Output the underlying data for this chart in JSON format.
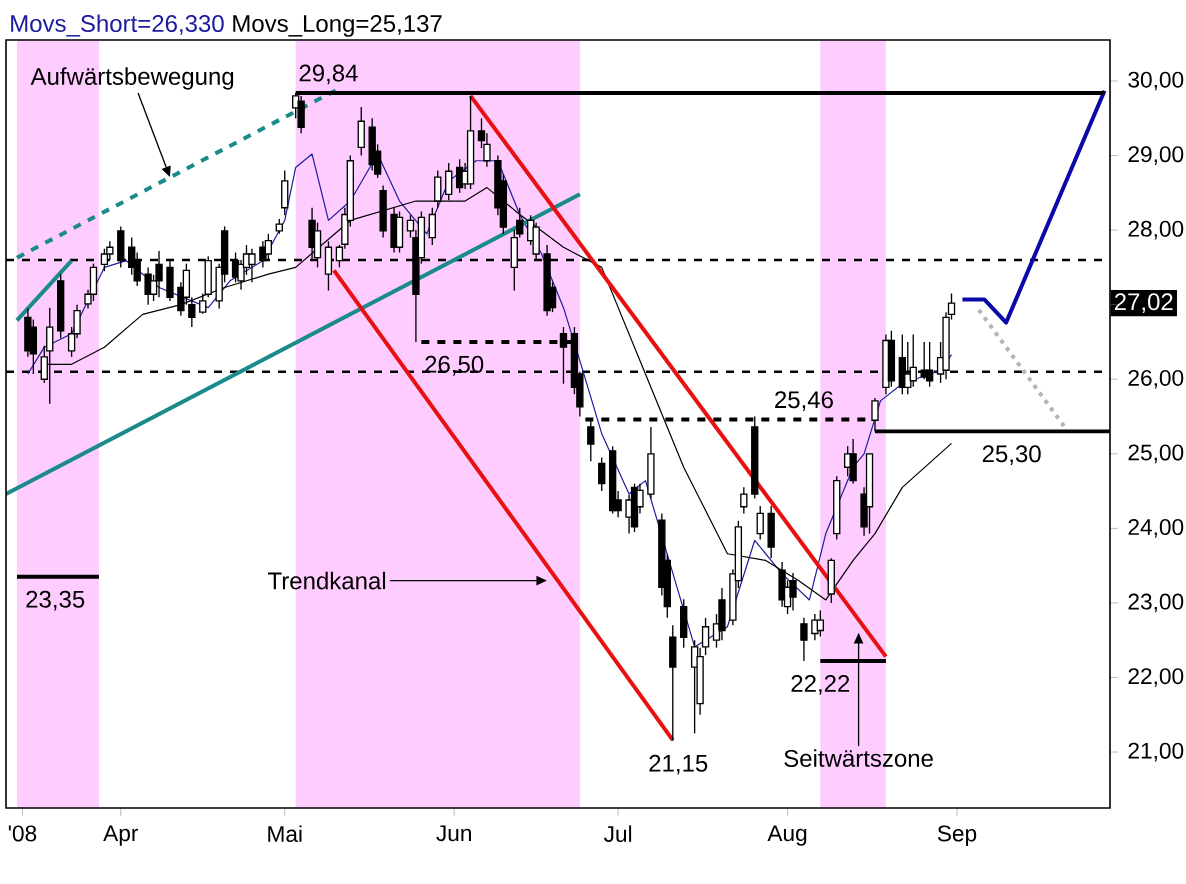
{
  "chart_data": {
    "type": "candlestick",
    "x": [
      "2008-03-15",
      "2008-03-16",
      "2008-03-18",
      "2008-03-19",
      "2008-03-21",
      "2008-03-23",
      "2008-03-24",
      "2008-03-26",
      "2008-03-27",
      "2008-03-29",
      "2008-03-30",
      "2008-04-01",
      "2008-04-03",
      "2008-04-04",
      "2008-04-06",
      "2008-04-07",
      "2008-04-08",
      "2008-04-10",
      "2008-04-12",
      "2008-04-13",
      "2008-04-14",
      "2008-04-16",
      "2008-04-17",
      "2008-04-19",
      "2008-04-20",
      "2008-04-22",
      "2008-04-23",
      "2008-04-24",
      "2008-04-25",
      "2008-04-27",
      "2008-04-28",
      "2008-04-30",
      "2008-05-01",
      "2008-05-03",
      "2008-05-04",
      "2008-05-06",
      "2008-05-07",
      "2008-05-09",
      "2008-05-11",
      "2008-05-12",
      "2008-05-13",
      "2008-05-15",
      "2008-05-17",
      "2008-05-18",
      "2008-05-19",
      "2008-05-21",
      "2008-05-22",
      "2008-05-24",
      "2008-05-25",
      "2008-05-26",
      "2008-05-28",
      "2008-05-29",
      "2008-05-31",
      "2008-06-02",
      "2008-06-03",
      "2008-06-04",
      "2008-06-06",
      "2008-06-07",
      "2008-06-09",
      "2008-06-10",
      "2008-06-12",
      "2008-06-13",
      "2008-06-15",
      "2008-06-16",
      "2008-06-18",
      "2008-06-19",
      "2008-06-21",
      "2008-06-23",
      "2008-06-24",
      "2008-06-26",
      "2008-06-28",
      "2008-06-30",
      "2008-07-01",
      "2008-07-03",
      "2008-07-04",
      "2008-07-05",
      "2008-07-07",
      "2008-07-09",
      "2008-07-10",
      "2008-07-11",
      "2008-07-13",
      "2008-07-15",
      "2008-07-16",
      "2008-07-17",
      "2008-07-19",
      "2008-07-20",
      "2008-07-22",
      "2008-07-23",
      "2008-07-24",
      "2008-07-26",
      "2008-07-27",
      "2008-07-29",
      "2008-07-31",
      "2008-08-01",
      "2008-08-02",
      "2008-08-04",
      "2008-08-06",
      "2008-08-07",
      "2008-08-09",
      "2008-08-10",
      "2008-08-12",
      "2008-08-13",
      "2008-08-15",
      "2008-08-16",
      "2008-08-17",
      "2008-08-19",
      "2008-08-20",
      "2008-08-22",
      "2008-08-23",
      "2008-08-24",
      "2008-08-26",
      "2008-08-27",
      "2008-08-29",
      "2008-08-30",
      "2008-08-31"
    ],
    "ohlc": [
      [
        26.83,
        26.95,
        26.3,
        26.38
      ],
      [
        26.7,
        26.8,
        26.07,
        26.34
      ],
      [
        26.0,
        26.45,
        25.95,
        26.3
      ],
      [
        26.38,
        26.96,
        25.67,
        26.7
      ],
      [
        27.32,
        27.41,
        26.55,
        26.65
      ],
      [
        26.38,
        26.7,
        26.3,
        26.61
      ],
      [
        26.61,
        27.0,
        26.55,
        26.92
      ],
      [
        27.01,
        27.2,
        26.95,
        27.14
      ],
      [
        27.14,
        27.55,
        27.05,
        27.5
      ],
      [
        27.54,
        27.75,
        27.45,
        27.68
      ],
      [
        27.68,
        27.85,
        27.6,
        27.77
      ],
      [
        27.99,
        28.05,
        27.5,
        27.59
      ],
      [
        27.77,
        27.9,
        27.4,
        27.5
      ],
      [
        27.59,
        27.7,
        27.25,
        27.32
      ],
      [
        27.41,
        27.5,
        27.0,
        27.14
      ],
      [
        27.14,
        27.4,
        27.05,
        27.32
      ],
      [
        27.54,
        27.72,
        27.1,
        27.32
      ],
      [
        27.5,
        27.6,
        27.05,
        27.1
      ],
      [
        27.23,
        27.3,
        26.85,
        26.92
      ],
      [
        27.1,
        27.55,
        27.0,
        27.46
      ],
      [
        27.0,
        27.1,
        26.7,
        26.83
      ],
      [
        26.9,
        27.15,
        26.88,
        27.05
      ],
      [
        27.14,
        27.65,
        27.1,
        27.59
      ],
      [
        27.05,
        27.55,
        26.95,
        27.5
      ],
      [
        27.99,
        28.05,
        27.3,
        27.41
      ],
      [
        27.59,
        27.7,
        27.3,
        27.37
      ],
      [
        27.32,
        27.6,
        27.2,
        27.54
      ],
      [
        27.5,
        27.8,
        27.4,
        27.68
      ],
      [
        27.54,
        27.75,
        27.3,
        27.68
      ],
      [
        27.77,
        27.85,
        27.5,
        27.59
      ],
      [
        27.68,
        27.95,
        27.6,
        27.86
      ],
      [
        27.99,
        28.15,
        27.95,
        28.08
      ],
      [
        28.3,
        28.8,
        28.2,
        28.66
      ],
      [
        29.64,
        29.84,
        29.5,
        29.8
      ],
      [
        29.73,
        29.8,
        29.3,
        29.38
      ],
      [
        28.13,
        28.3,
        27.6,
        27.77
      ],
      [
        27.63,
        28.1,
        27.5,
        27.99
      ],
      [
        27.41,
        27.85,
        27.19,
        27.77
      ],
      [
        27.59,
        27.8,
        27.5,
        27.77
      ],
      [
        27.81,
        28.3,
        27.75,
        28.21
      ],
      [
        28.13,
        29.0,
        28.05,
        28.93
      ],
      [
        29.11,
        29.65,
        29.0,
        29.46
      ],
      [
        29.38,
        29.5,
        28.8,
        28.88
      ],
      [
        29.06,
        29.15,
        28.7,
        28.75
      ],
      [
        28.53,
        28.6,
        27.9,
        27.99
      ],
      [
        28.21,
        28.3,
        27.7,
        27.77
      ],
      [
        27.77,
        28.25,
        27.7,
        28.17
      ],
      [
        27.99,
        28.2,
        27.9,
        28.13
      ],
      [
        27.9,
        28.0,
        26.5,
        27.14
      ],
      [
        27.63,
        28.25,
        27.55,
        28.17
      ],
      [
        27.9,
        28.3,
        27.8,
        28.21
      ],
      [
        28.39,
        28.8,
        28.3,
        28.71
      ],
      [
        28.48,
        28.9,
        28.4,
        28.79
      ],
      [
        28.84,
        28.95,
        28.5,
        28.57
      ],
      [
        28.62,
        28.9,
        28.55,
        28.79
      ],
      [
        28.62,
        29.8,
        28.55,
        29.33
      ],
      [
        29.33,
        29.5,
        29.1,
        29.2
      ],
      [
        28.93,
        29.3,
        28.85,
        29.15
      ],
      [
        28.93,
        29.0,
        28.2,
        28.3
      ],
      [
        28.66,
        28.75,
        27.95,
        28.04
      ],
      [
        27.5,
        28.0,
        27.19,
        27.9
      ],
      [
        28.13,
        28.3,
        27.9,
        27.95
      ],
      [
        27.86,
        28.2,
        27.8,
        28.13
      ],
      [
        27.68,
        28.1,
        27.6,
        28.04
      ],
      [
        27.68,
        27.8,
        26.85,
        26.92
      ],
      [
        27.23,
        27.3,
        26.9,
        26.96
      ],
      [
        26.61,
        26.7,
        25.94,
        26.43
      ],
      [
        26.61,
        26.7,
        25.8,
        25.89
      ],
      [
        26.07,
        26.1,
        25.5,
        25.63
      ],
      [
        25.36,
        25.45,
        24.9,
        25.13
      ],
      [
        24.87,
        24.95,
        24.5,
        24.6
      ],
      [
        25.04,
        25.1,
        24.2,
        24.24
      ],
      [
        24.38,
        24.5,
        24.15,
        24.24
      ],
      [
        24.15,
        24.45,
        23.93,
        24.38
      ],
      [
        24.55,
        24.6,
        23.95,
        24.02
      ],
      [
        24.29,
        24.6,
        24.2,
        24.51
      ],
      [
        24.46,
        25.36,
        24.4,
        25.0
      ],
      [
        24.11,
        24.2,
        23.1,
        23.21
      ],
      [
        23.57,
        23.65,
        22.8,
        22.95
      ],
      [
        22.54,
        22.7,
        21.15,
        22.14
      ],
      [
        22.95,
        23.05,
        22.4,
        22.54
      ],
      [
        22.14,
        22.5,
        21.25,
        22.41
      ],
      [
        21.65,
        22.4,
        21.5,
        22.28
      ],
      [
        22.41,
        22.8,
        22.3,
        22.68
      ],
      [
        22.5,
        22.85,
        22.4,
        22.72
      ],
      [
        23.04,
        23.2,
        22.5,
        22.63
      ],
      [
        22.77,
        23.45,
        22.7,
        23.39
      ],
      [
        23.3,
        24.1,
        23.2,
        24.02
      ],
      [
        24.29,
        24.55,
        24.2,
        24.46
      ],
      [
        25.36,
        25.5,
        24.4,
        24.46
      ],
      [
        23.93,
        24.3,
        23.85,
        24.2
      ],
      [
        24.2,
        24.3,
        23.6,
        23.75
      ],
      [
        23.44,
        23.55,
        22.95,
        23.04
      ],
      [
        22.95,
        23.3,
        22.85,
        23.21
      ],
      [
        23.3,
        23.4,
        22.9,
        23.08
      ],
      [
        22.72,
        22.8,
        22.22,
        22.5
      ],
      [
        22.59,
        22.85,
        22.5,
        22.77
      ],
      [
        22.63,
        22.9,
        22.55,
        22.77
      ],
      [
        23.12,
        23.6,
        23.0,
        23.57
      ],
      [
        23.93,
        24.7,
        23.85,
        24.64
      ],
      [
        24.82,
        25.1,
        24.7,
        25.0
      ],
      [
        25.0,
        25.2,
        24.6,
        24.64
      ],
      [
        24.46,
        24.55,
        23.9,
        24.02
      ],
      [
        24.29,
        25.0,
        23.93,
        25.0
      ],
      [
        25.45,
        25.75,
        25.3,
        25.71
      ],
      [
        25.89,
        26.6,
        25.8,
        26.52
      ],
      [
        26.52,
        26.65,
        25.9,
        25.98
      ],
      [
        26.29,
        26.6,
        25.8,
        25.89
      ],
      [
        25.89,
        26.5,
        25.8,
        26.07
      ],
      [
        25.98,
        26.6,
        25.9,
        26.16
      ],
      [
        26.12,
        26.5,
        26.0,
        26.03
      ],
      [
        26.12,
        26.5,
        25.9,
        25.98
      ],
      [
        26.07,
        26.5,
        25.95,
        26.29
      ],
      [
        26.12,
        26.9,
        26.0,
        26.83
      ],
      [
        26.87,
        27.15,
        26.8,
        27.02
      ]
    ],
    "series": [
      {
        "name": "Movs_Short=26,330",
        "type": "line",
        "color": "#1c1ca0",
        "x": [
          "2008-03-15",
          "2008-03-18",
          "2008-03-23",
          "2008-03-29",
          "2008-04-02",
          "2008-04-08",
          "2008-04-17",
          "2008-04-21",
          "2008-04-27",
          "2008-05-01",
          "2008-05-03",
          "2008-05-06",
          "2008-05-09",
          "2008-05-13",
          "2008-05-18",
          "2008-05-22",
          "2008-05-27",
          "2008-05-31",
          "2008-06-05",
          "2008-06-09",
          "2008-06-13",
          "2008-06-17",
          "2008-06-21",
          "2008-06-24",
          "2008-06-28",
          "2008-07-03",
          "2008-07-06",
          "2008-07-15",
          "2008-07-21",
          "2008-07-26",
          "2008-07-31",
          "2008-08-05",
          "2008-08-08",
          "2008-08-13",
          "2008-08-15",
          "2008-08-18",
          "2008-08-22",
          "2008-08-29",
          "2008-08-31"
        ],
        "values": [
          26.07,
          26.43,
          26.61,
          27.5,
          27.59,
          27.23,
          26.96,
          27.32,
          27.59,
          28.13,
          28.84,
          29.02,
          28.13,
          28.39,
          29.02,
          28.39,
          27.95,
          28.66,
          28.93,
          28.93,
          28.21,
          27.68,
          26.96,
          26.25,
          25.27,
          24.46,
          24.64,
          22.41,
          22.68,
          23.84,
          23.39,
          23.04,
          23.93,
          24.82,
          25.0,
          25.71,
          25.94,
          26.12,
          26.33
        ]
      },
      {
        "name": "Movs_Long=25,137",
        "type": "line",
        "color": "#000000",
        "x": [
          "2008-03-18",
          "2008-03-23",
          "2008-03-29",
          "2008-04-05",
          "2008-04-12",
          "2008-04-20",
          "2008-04-28",
          "2008-05-03",
          "2008-05-13",
          "2008-05-25",
          "2008-06-03",
          "2008-06-07",
          "2008-06-13",
          "2008-06-21",
          "2008-06-28",
          "2008-07-06",
          "2008-07-13",
          "2008-07-21",
          "2008-07-28",
          "2008-08-03",
          "2008-08-08",
          "2008-08-13",
          "2008-08-17",
          "2008-08-22",
          "2008-08-31"
        ],
        "values": [
          26.2,
          26.2,
          26.43,
          26.87,
          27.0,
          27.23,
          27.41,
          27.5,
          28.13,
          28.39,
          28.39,
          28.57,
          28.21,
          27.77,
          27.5,
          26.07,
          24.82,
          23.66,
          23.57,
          23.3,
          23.04,
          23.57,
          23.93,
          24.55,
          25.14
        ]
      },
      {
        "type": "line",
        "color": "#1a8a8a",
        "line_style": "dashed",
        "x": [
          "2008-03-13",
          "2008-05-11"
        ],
        "values": [
          27.63,
          29.9
        ]
      },
      {
        "type": "line",
        "color": "#1a8a8a",
        "x": [
          "2008-03-13",
          "2008-03-23"
        ],
        "values": [
          26.79,
          27.59
        ]
      },
      {
        "type": "line",
        "color": "#1a8a8a",
        "x": [
          "2008-03-11",
          "2008-06-24"
        ],
        "values": [
          24.46,
          28.48
        ]
      },
      {
        "type": "line",
        "color": "#e81010",
        "x": [
          "2008-06-04",
          "2008-08-19"
        ],
        "values": [
          29.8,
          22.28
        ]
      },
      {
        "type": "line",
        "color": "#e81010",
        "x": [
          "2008-05-10",
          "2008-07-11"
        ],
        "values": [
          27.46,
          21.16
        ]
      },
      {
        "type": "line",
        "color": "#0a0aa8",
        "x": [
          "2008-09-02",
          "2008-09-06",
          "2008-09-10",
          "2008-09-28"
        ],
        "values": [
          27.07,
          27.07,
          26.76,
          29.87
        ]
      },
      {
        "type": "line",
        "color": "#b4b4b4",
        "line_style": "dotted",
        "x": [
          "2008-09-05",
          "2008-09-21"
        ],
        "values": [
          26.93,
          25.33
        ]
      },
      {
        "type": "line",
        "color": "#000000",
        "x": [
          "2008-05-03",
          "2008-09-28"
        ],
        "values": [
          29.84,
          29.84
        ]
      },
      {
        "type": "line",
        "color": "#000000",
        "line_style": "dashed",
        "x": [
          "2008-05-26",
          "2008-06-23"
        ],
        "values": [
          26.5,
          26.5
        ]
      },
      {
        "type": "line",
        "color": "#000000",
        "line_style": "dashed",
        "x": [
          "2008-06-25",
          "2008-08-16"
        ],
        "values": [
          25.46,
          25.46
        ]
      },
      {
        "type": "line",
        "color": "#000000",
        "x": [
          "2008-08-17",
          "2008-09-29"
        ],
        "values": [
          25.3,
          25.3
        ]
      },
      {
        "type": "line",
        "color": "#000000",
        "x": [
          "2008-03-13",
          "2008-03-28"
        ],
        "values": [
          23.35,
          23.35
        ]
      },
      {
        "type": "line",
        "color": "#000000",
        "x": [
          "2008-08-07",
          "2008-08-19"
        ],
        "values": [
          22.22,
          22.22
        ]
      }
    ],
    "ref_lines": [
      {
        "axis": "y",
        "value": 27.6,
        "line_style": "dashed",
        "color": "#000000"
      },
      {
        "axis": "y",
        "value": 26.1,
        "line_style": "dashed",
        "color": "#000000"
      }
    ],
    "bands": [
      {
        "axis": "x",
        "from": "2008-03-13",
        "to": "2008-03-28",
        "color": "#ffccff"
      },
      {
        "axis": "x",
        "from": "2008-05-03",
        "to": "2008-06-24",
        "color": "#ffccff"
      },
      {
        "axis": "x",
        "from": "2008-08-07",
        "to": "2008-08-19",
        "color": "#ffccff"
      }
    ],
    "annotations": [
      {
        "text": "Aufwärtsbewegung",
        "x": "2008-04-10",
        "y": 28.71
      },
      {
        "text": "Trendkanal",
        "x": "2008-06-18",
        "y": 23.3
      },
      {
        "text": "Seitwärtszone",
        "x": "2008-08-14",
        "y": 22.6
      },
      {
        "text": "29,84",
        "x": "2008-05-09",
        "y": 29.84
      },
      {
        "text": "26,50",
        "x": "2008-06-01",
        "y": 26.5
      },
      {
        "text": "23,35",
        "x": "2008-03-20",
        "y": 23.35
      },
      {
        "text": "25,46",
        "x": "2008-08-04",
        "y": 25.46
      },
      {
        "text": "21,15",
        "x": "2008-07-12",
        "y": 21.15
      },
      {
        "text": "22,22",
        "x": "2008-08-07",
        "y": 22.22
      },
      {
        "text": "25,30",
        "x": "2008-09-11",
        "y": 25.3
      },
      {
        "text": "27,02",
        "y": 27.02
      }
    ],
    "xlim": [
      "2008-03-11",
      "2008-09-29"
    ],
    "xticks": [
      {
        "value": "2008-03-14",
        "label": "'08"
      },
      {
        "value": "2008-04-01",
        "label": "Apr"
      },
      {
        "value": "2008-05-01",
        "label": "Mai"
      },
      {
        "value": "2008-06-01",
        "label": "Jun"
      },
      {
        "value": "2008-07-01",
        "label": "Jul"
      },
      {
        "value": "2008-08-01",
        "label": "Aug"
      },
      {
        "value": "2008-09-01",
        "label": "Sep"
      }
    ],
    "ylim": [
      20.25,
      30.55
    ],
    "yticks": [
      {
        "value": 21,
        "label": "21,00"
      },
      {
        "value": 22,
        "label": "22,00"
      },
      {
        "value": 23,
        "label": "23,00"
      },
      {
        "value": 24,
        "label": "24,00"
      },
      {
        "value": 25,
        "label": "25,00"
      },
      {
        "value": 26,
        "label": "26,00"
      },
      {
        "value": 27,
        "label": null
      },
      {
        "value": 28,
        "label": "28,00"
      },
      {
        "value": 29,
        "label": "29,00"
      },
      {
        "value": 30,
        "label": "30,00"
      }
    ],
    "legend": "top left"
  }
}
